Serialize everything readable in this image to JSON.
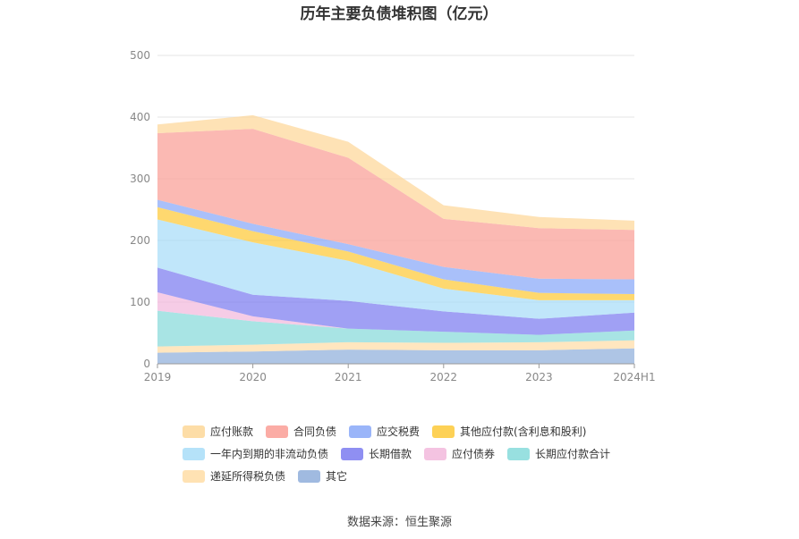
{
  "chart_data": {
    "type": "area",
    "stacked": true,
    "title": "历年主要负债堆积图（亿元）",
    "categories": [
      "2019",
      "2020",
      "2021",
      "2022",
      "2023",
      "2024H1"
    ],
    "ylim": [
      0,
      500
    ],
    "yticks": [
      0,
      100,
      200,
      300,
      400,
      500
    ],
    "grid": true,
    "legend_position": "bottom",
    "series": [
      {
        "name": "其它",
        "color": "#8FAEDB",
        "values": [
          18,
          20,
          23,
          22,
          22,
          25
        ]
      },
      {
        "name": "递延所得税负债",
        "color": "#FFDDA6",
        "values": [
          10,
          11,
          12,
          12,
          13,
          13
        ]
      },
      {
        "name": "长期应付款合计",
        "color": "#86DADA",
        "values": [
          58,
          38,
          22,
          18,
          12,
          16
        ]
      },
      {
        "name": "应付债券",
        "color": "#F2B9DC",
        "values": [
          30,
          8,
          0,
          0,
          0,
          0
        ]
      },
      {
        "name": "长期借款",
        "color": "#7B7BF0",
        "values": [
          40,
          35,
          45,
          33,
          26,
          29
        ]
      },
      {
        "name": "一年内到期的非流动负债",
        "color": "#A8DDF8",
        "values": [
          78,
          85,
          65,
          37,
          30,
          20
        ]
      },
      {
        "name": "其他应付款(含利息和股利)",
        "color": "#FDC938",
        "values": [
          20,
          18,
          15,
          15,
          12,
          10
        ]
      },
      {
        "name": "应交税费",
        "color": "#88A8F8",
        "values": [
          12,
          12,
          12,
          20,
          23,
          24
        ]
      },
      {
        "name": "合同负债",
        "color": "#FA9E95",
        "values": [
          108,
          154,
          140,
          78,
          82,
          80
        ]
      },
      {
        "name": "应付账款",
        "color": "#FDD798",
        "values": [
          14,
          22,
          26,
          22,
          18,
          15
        ]
      }
    ],
    "legend_order": [
      "应付账款",
      "合同负债",
      "应交税费",
      "其他应付款(含利息和股利)",
      "一年内到期的非流动负债",
      "长期借款",
      "应付债券",
      "长期应付款合计",
      "递延所得税负债",
      "其它"
    ]
  },
  "source_text": "数据来源：恒生聚源"
}
